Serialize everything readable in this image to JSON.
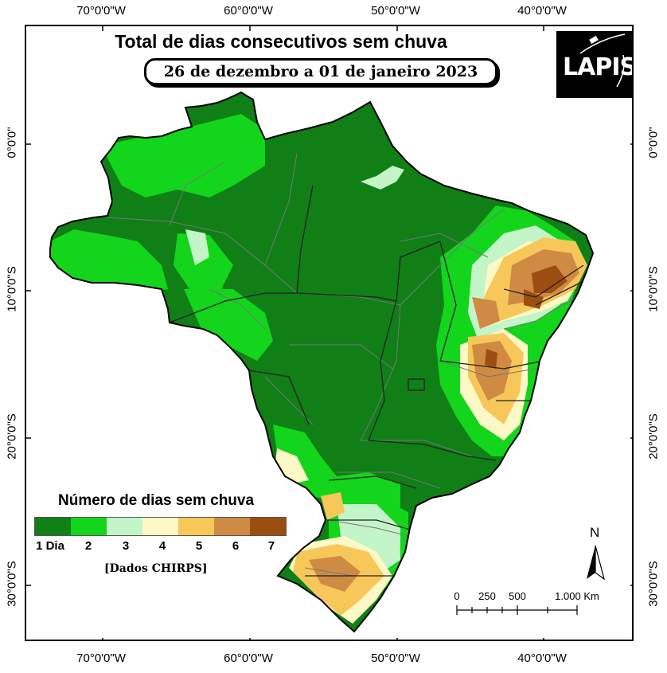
{
  "map": {
    "title": "Total de dias consecutivos sem chuva",
    "subtitle": "26 de dezembro a 01 de janeiro 2023",
    "logo_text": "LAPIS",
    "source": "[Dados CHIRPS]",
    "north_label": "N"
  },
  "axes": {
    "longitude_labels": [
      "70°0'0\"W",
      "60°0'0\"W",
      "50°0'0\"W",
      "40°0'0\"W"
    ],
    "latitude_labels": [
      "0°0'0\"",
      "10°0'0\"S",
      "20°0'0\"S",
      "30°0'0\"S"
    ]
  },
  "legend": {
    "title": "Número de dias sem chuva",
    "classes": [
      {
        "label": "1 Dia",
        "color": "#0f7f16"
      },
      {
        "label": "2",
        "color": "#12d51c"
      },
      {
        "label": "3",
        "color": "#c4f5c8"
      },
      {
        "label": "4",
        "color": "#fdf9c6"
      },
      {
        "label": "5",
        "color": "#f7c75a"
      },
      {
        "label": "6",
        "color": "#cf8a44"
      },
      {
        "label": "7",
        "color": "#9c4e11"
      }
    ]
  },
  "scale_bar": {
    "labels": [
      "0",
      "250",
      "500",
      "1.000 Km"
    ]
  }
}
